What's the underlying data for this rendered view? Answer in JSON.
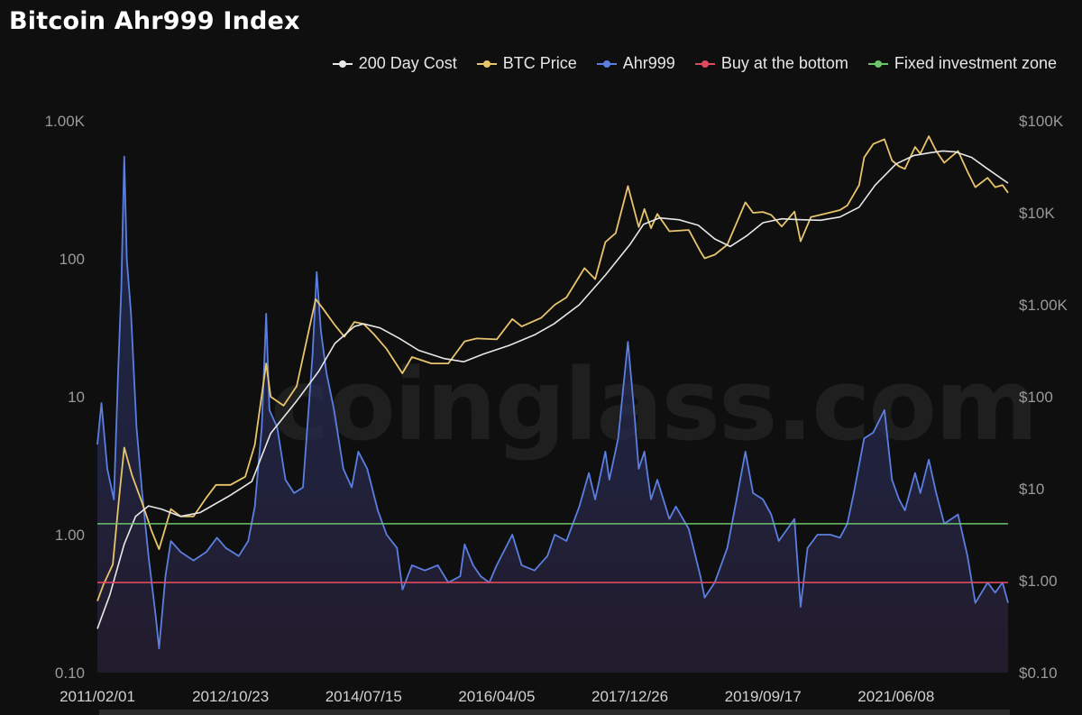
{
  "title": "Bitcoin Ahr999 Index",
  "watermark": "coinglass.com",
  "colors": {
    "background": "#0f0f10",
    "cost": "#e8e8e8",
    "price": "#e8c56b",
    "ahr": "#5b7fe0",
    "buy_line": "#e04a5f",
    "fixed_line": "#6cc46c"
  },
  "legend": [
    {
      "label": "200 Day Cost",
      "color": "#e8e8e8"
    },
    {
      "label": "BTC Price",
      "color": "#e8c56b"
    },
    {
      "label": "Ahr999",
      "color": "#5b7fe0"
    },
    {
      "label": "Buy at the bottom",
      "color": "#e04a5f"
    },
    {
      "label": "Fixed investment zone",
      "color": "#6cc46c"
    }
  ],
  "chart_data": {
    "type": "line",
    "title": "Bitcoin Ahr999 Index",
    "x_scale": "time",
    "x_range": [
      "2011/02/01",
      "2022/11/20"
    ],
    "x_ticks": [
      "2011/02/01",
      "2012/10/23",
      "2014/07/15",
      "2016/04/05",
      "2017/12/26",
      "2019/09/17",
      "2021/06/08"
    ],
    "left_axis": {
      "scale": "log",
      "range": [
        0.1,
        1000
      ],
      "ticks": [
        {
          "value": 0.1,
          "label": "0.10"
        },
        {
          "value": 1,
          "label": "1.00"
        },
        {
          "value": 10,
          "label": "10"
        },
        {
          "value": 100,
          "label": "100"
        },
        {
          "value": 1000,
          "label": "1.00K"
        }
      ]
    },
    "right_axis": {
      "scale": "log",
      "range": [
        0.1,
        100000
      ],
      "ticks": [
        {
          "value": 0.1,
          "label": "$0.10"
        },
        {
          "value": 1,
          "label": "$1.00"
        },
        {
          "value": 10,
          "label": "$10"
        },
        {
          "value": 100,
          "label": "$100"
        },
        {
          "value": 1000,
          "label": "$1.00K"
        },
        {
          "value": 10000,
          "label": "$10K"
        },
        {
          "value": 100000,
          "label": "$100K"
        }
      ]
    },
    "thresholds": [
      {
        "name": "Fixed investment zone",
        "value": 1.2,
        "axis": "left"
      },
      {
        "name": "Buy at the bottom",
        "value": 0.45,
        "axis": "left"
      }
    ],
    "series": [
      {
        "name": "Ahr999",
        "axis": "left",
        "points": [
          [
            "2011/02/01",
            4.5
          ],
          [
            "2011/02/20",
            9.0
          ],
          [
            "2011/03/20",
            3.0
          ],
          [
            "2011/04/20",
            1.8
          ],
          [
            "2011/05/10",
            15
          ],
          [
            "2011/05/25",
            60
          ],
          [
            "2011/06/08",
            550
          ],
          [
            "2011/06/20",
            100
          ],
          [
            "2011/07/10",
            40
          ],
          [
            "2011/08/05",
            6
          ],
          [
            "2011/09/01",
            2.0
          ],
          [
            "2011/10/01",
            0.7
          ],
          [
            "2011/11/05",
            0.25
          ],
          [
            "2011/11/20",
            0.15
          ],
          [
            "2011/12/20",
            0.5
          ],
          [
            "2012/01/15",
            0.9
          ],
          [
            "2012/03/01",
            0.75
          ],
          [
            "2012/05/01",
            0.65
          ],
          [
            "2012/07/01",
            0.75
          ],
          [
            "2012/08/20",
            0.95
          ],
          [
            "2012/10/01",
            0.8
          ],
          [
            "2012/12/01",
            0.7
          ],
          [
            "2013/01/15",
            0.9
          ],
          [
            "2013/02/15",
            1.6
          ],
          [
            "2013/03/20",
            6
          ],
          [
            "2013/04/10",
            40
          ],
          [
            "2013/04/25",
            8
          ],
          [
            "2013/06/01",
            6
          ],
          [
            "2013/07/10",
            2.5
          ],
          [
            "2013/08/20",
            2.0
          ],
          [
            "2013/10/01",
            2.2
          ],
          [
            "2013/11/15",
            20
          ],
          [
            "2013/12/05",
            80
          ],
          [
            "2013/12/25",
            30
          ],
          [
            "2014/01/20",
            15
          ],
          [
            "2014/02/25",
            8
          ],
          [
            "2014/04/10",
            3
          ],
          [
            "2014/05/20",
            2.2
          ],
          [
            "2014/06/20",
            4.0
          ],
          [
            "2014/08/01",
            3.0
          ],
          [
            "2014/09/20",
            1.5
          ],
          [
            "2014/11/01",
            1.0
          ],
          [
            "2014/12/20",
            0.8
          ],
          [
            "2015/01/15",
            0.4
          ],
          [
            "2015/03/01",
            0.6
          ],
          [
            "2015/05/01",
            0.55
          ],
          [
            "2015/07/01",
            0.6
          ],
          [
            "2015/08/20",
            0.45
          ],
          [
            "2015/10/15",
            0.5
          ],
          [
            "2015/11/05",
            0.85
          ],
          [
            "2015/12/15",
            0.6
          ],
          [
            "2016/01/20",
            0.5
          ],
          [
            "2016/03/01",
            0.45
          ],
          [
            "2016/04/05",
            0.6
          ],
          [
            "2016/06/18",
            1.0
          ],
          [
            "2016/08/01",
            0.6
          ],
          [
            "2016/10/01",
            0.55
          ],
          [
            "2016/12/01",
            0.7
          ],
          [
            "2017/01/05",
            1.0
          ],
          [
            "2017/03/01",
            0.9
          ],
          [
            "2017/05/01",
            1.6
          ],
          [
            "2017/06/15",
            2.8
          ],
          [
            "2017/07/15",
            1.8
          ],
          [
            "2017/09/01",
            4.0
          ],
          [
            "2017/09/20",
            2.5
          ],
          [
            "2017/11/01",
            5.0
          ],
          [
            "2017/12/17",
            25
          ],
          [
            "2018/01/15",
            8
          ],
          [
            "2018/02/06",
            3.0
          ],
          [
            "2018/03/05",
            4.0
          ],
          [
            "2018/04/05",
            1.8
          ],
          [
            "2018/05/05",
            2.5
          ],
          [
            "2018/07/01",
            1.3
          ],
          [
            "2018/08/01",
            1.6
          ],
          [
            "2018/10/01",
            1.1
          ],
          [
            "2018/11/25",
            0.5
          ],
          [
            "2018/12/15",
            0.35
          ],
          [
            "2019/02/01",
            0.45
          ],
          [
            "2019/04/01",
            0.8
          ],
          [
            "2019/05/15",
            1.8
          ],
          [
            "2019/06/26",
            4.0
          ],
          [
            "2019/08/01",
            2.0
          ],
          [
            "2019/09/17",
            1.8
          ],
          [
            "2019/10/26",
            1.4
          ],
          [
            "2019/12/01",
            0.9
          ],
          [
            "2020/02/13",
            1.3
          ],
          [
            "2020/03/13",
            0.3
          ],
          [
            "2020/04/15",
            0.8
          ],
          [
            "2020/06/01",
            1.0
          ],
          [
            "2020/08/01",
            1.0
          ],
          [
            "2020/09/15",
            0.95
          ],
          [
            "2020/10/20",
            1.2
          ],
          [
            "2020/11/20",
            2.0
          ],
          [
            "2021/01/08",
            5.0
          ],
          [
            "2021/02/20",
            5.5
          ],
          [
            "2021/04/14",
            8
          ],
          [
            "2021/05/20",
            2.5
          ],
          [
            "2021/06/22",
            1.8
          ],
          [
            "2021/07/20",
            1.5
          ],
          [
            "2021/09/06",
            2.8
          ],
          [
            "2021/10/01",
            2.0
          ],
          [
            "2021/11/10",
            3.5
          ],
          [
            "2021/12/15",
            2.0
          ],
          [
            "2022/01/22",
            1.2
          ],
          [
            "2022/03/28",
            1.4
          ],
          [
            "2022/05/12",
            0.7
          ],
          [
            "2022/06/18",
            0.32
          ],
          [
            "2022/08/15",
            0.45
          ],
          [
            "2022/09/20",
            0.38
          ],
          [
            "2022/10/25",
            0.45
          ],
          [
            "2022/11/20",
            0.32
          ]
        ]
      },
      {
        "name": "BTC Price",
        "axis": "right",
        "points": [
          [
            "2011/02/01",
            0.6
          ],
          [
            "2011/03/01",
            0.9
          ],
          [
            "2011/04/15",
            1.5
          ],
          [
            "2011/05/15",
            8
          ],
          [
            "2011/06/08",
            28
          ],
          [
            "2011/07/15",
            14
          ],
          [
            "2011/09/01",
            7
          ],
          [
            "2011/10/15",
            3.5
          ],
          [
            "2011/11/20",
            2.2
          ],
          [
            "2012/01/15",
            6
          ],
          [
            "2012/03/01",
            5
          ],
          [
            "2012/05/01",
            5
          ],
          [
            "2012/07/01",
            8
          ],
          [
            "2012/08/15",
            11
          ],
          [
            "2012/10/23",
            11
          ],
          [
            "2013/01/01",
            13.5
          ],
          [
            "2013/02/15",
            30
          ],
          [
            "2013/04/10",
            230
          ],
          [
            "2013/05/01",
            100
          ],
          [
            "2013/07/01",
            80
          ],
          [
            "2013/09/01",
            130
          ],
          [
            "2013/11/30",
            1150
          ],
          [
            "2014/01/05",
            900
          ],
          [
            "2014/03/01",
            600
          ],
          [
            "2014/04/15",
            450
          ],
          [
            "2014/06/01",
            650
          ],
          [
            "2014/07/15",
            620
          ],
          [
            "2014/09/01",
            480
          ],
          [
            "2014/11/01",
            330
          ],
          [
            "2015/01/14",
            180
          ],
          [
            "2015/03/01",
            270
          ],
          [
            "2015/06/01",
            230
          ],
          [
            "2015/08/20",
            230
          ],
          [
            "2015/11/05",
            400
          ],
          [
            "2016/01/01",
            430
          ],
          [
            "2016/04/05",
            420
          ],
          [
            "2016/06/18",
            700
          ],
          [
            "2016/08/01",
            580
          ],
          [
            "2016/11/01",
            720
          ],
          [
            "2017/01/05",
            1000
          ],
          [
            "2017/03/01",
            1200
          ],
          [
            "2017/05/25",
            2500
          ],
          [
            "2017/07/15",
            1900
          ],
          [
            "2017/09/01",
            4800
          ],
          [
            "2017/10/20",
            6000
          ],
          [
            "2017/12/17",
            19500
          ],
          [
            "2018/02/06",
            7000
          ],
          [
            "2018/03/05",
            11000
          ],
          [
            "2018/04/05",
            6800
          ],
          [
            "2018/05/05",
            9700
          ],
          [
            "2018/07/01",
            6300
          ],
          [
            "2018/10/01",
            6500
          ],
          [
            "2018/11/25",
            3800
          ],
          [
            "2018/12/15",
            3200
          ],
          [
            "2019/02/01",
            3500
          ],
          [
            "2019/04/01",
            4500
          ],
          [
            "2019/06/26",
            13000
          ],
          [
            "2019/08/01",
            10000
          ],
          [
            "2019/09/17",
            10200
          ],
          [
            "2019/10/26",
            9500
          ],
          [
            "2019/12/15",
            7100
          ],
          [
            "2020/02/13",
            10300
          ],
          [
            "2020/03/13",
            4900
          ],
          [
            "2020/05/01",
            9000
          ],
          [
            "2020/07/25",
            10000
          ],
          [
            "2020/09/15",
            10700
          ],
          [
            "2020/10/20",
            12000
          ],
          [
            "2020/12/15",
            20000
          ],
          [
            "2021/01/08",
            40000
          ],
          [
            "2021/02/20",
            56000
          ],
          [
            "2021/04/14",
            63000
          ],
          [
            "2021/05/20",
            37000
          ],
          [
            "2021/06/22",
            32000
          ],
          [
            "2021/07/20",
            30000
          ],
          [
            "2021/09/06",
            52000
          ],
          [
            "2021/10/01",
            44000
          ],
          [
            "2021/11/10",
            68000
          ],
          [
            "2021/12/15",
            47000
          ],
          [
            "2022/01/22",
            35000
          ],
          [
            "2022/03/28",
            47000
          ],
          [
            "2022/05/12",
            28000
          ],
          [
            "2022/06/18",
            19000
          ],
          [
            "2022/08/15",
            24000
          ],
          [
            "2022/09/20",
            19000
          ],
          [
            "2022/10/25",
            20000
          ],
          [
            "2022/11/20",
            16500
          ]
        ]
      },
      {
        "name": "200 Day Cost",
        "axis": "right",
        "points": [
          [
            "2011/02/01",
            0.3
          ],
          [
            "2011/04/01",
            0.7
          ],
          [
            "2011/06/08",
            2.5
          ],
          [
            "2011/08/01",
            5
          ],
          [
            "2011/10/01",
            6.5
          ],
          [
            "2011/12/01",
            6
          ],
          [
            "2012/03/01",
            5
          ],
          [
            "2012/06/01",
            5.5
          ],
          [
            "2012/10/23",
            8.5
          ],
          [
            "2013/02/01",
            12
          ],
          [
            "2013/05/01",
            40
          ],
          [
            "2013/09/01",
            90
          ],
          [
            "2013/12/15",
            190
          ],
          [
            "2014/03/01",
            380
          ],
          [
            "2014/06/01",
            580
          ],
          [
            "2014/07/15",
            620
          ],
          [
            "2014/10/01",
            560
          ],
          [
            "2015/01/01",
            430
          ],
          [
            "2015/04/01",
            320
          ],
          [
            "2015/08/01",
            260
          ],
          [
            "2015/11/01",
            240
          ],
          [
            "2016/02/01",
            290
          ],
          [
            "2016/06/01",
            360
          ],
          [
            "2016/10/01",
            470
          ],
          [
            "2017/01/01",
            620
          ],
          [
            "2017/05/01",
            1000
          ],
          [
            "2017/09/01",
            2100
          ],
          [
            "2017/12/26",
            4500
          ],
          [
            "2018/03/01",
            7500
          ],
          [
            "2018/05/15",
            8800
          ],
          [
            "2018/08/15",
            8400
          ],
          [
            "2018/11/15",
            7300
          ],
          [
            "2019/02/01",
            5200
          ],
          [
            "2019/04/15",
            4300
          ],
          [
            "2019/07/01",
            5600
          ],
          [
            "2019/09/17",
            7800
          ],
          [
            "2019/12/15",
            8600
          ],
          [
            "2020/03/15",
            8400
          ],
          [
            "2020/06/15",
            8300
          ],
          [
            "2020/09/15",
            9000
          ],
          [
            "2020/12/15",
            11500
          ],
          [
            "2021/03/01",
            20000
          ],
          [
            "2021/06/08",
            34000
          ],
          [
            "2021/09/01",
            42000
          ],
          [
            "2021/11/15",
            45000
          ],
          [
            "2022/01/15",
            47000
          ],
          [
            "2022/03/15",
            46000
          ],
          [
            "2022/06/01",
            40000
          ],
          [
            "2022/08/15",
            30000
          ],
          [
            "2022/11/20",
            21000
          ]
        ]
      }
    ]
  }
}
